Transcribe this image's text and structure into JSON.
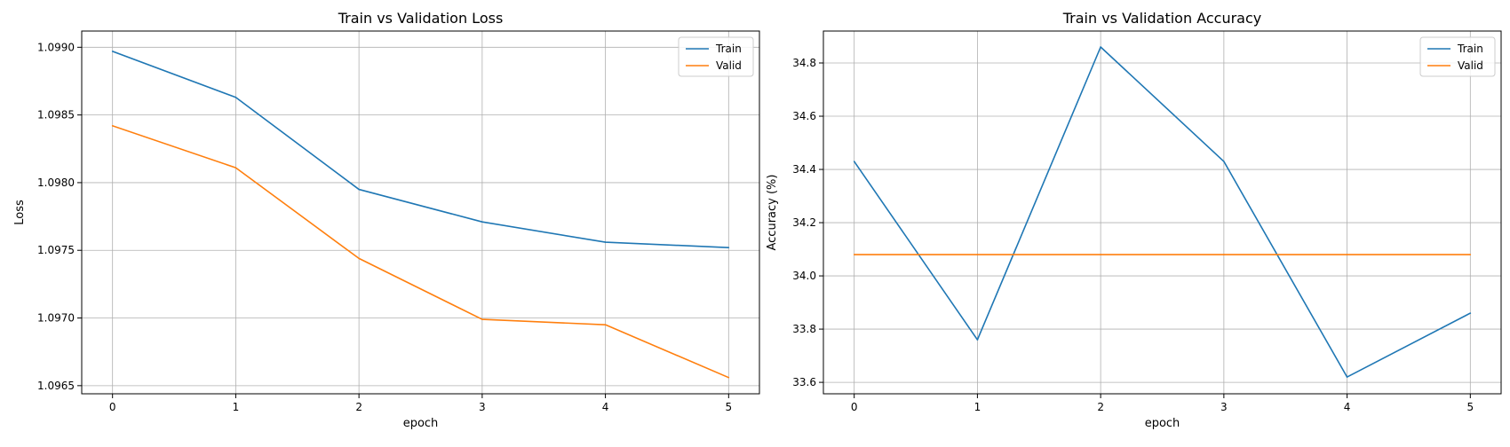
{
  "colors": {
    "train": "#1f77b4",
    "valid": "#ff7f0e",
    "grid": "#b0b0b0",
    "axes": "#000000"
  },
  "chart_data": [
    {
      "type": "line",
      "title": "Train vs Validation Loss",
      "xlabel": "epoch",
      "ylabel": "Loss",
      "x": [
        0,
        1,
        2,
        3,
        4,
        5
      ],
      "xticks": [
        "0",
        "1",
        "2",
        "3",
        "4",
        "5"
      ],
      "xlim": [
        -0.25,
        5.25
      ],
      "yticks": [
        "1.0965",
        "1.0970",
        "1.0975",
        "1.0980",
        "1.0985",
        "1.0990"
      ],
      "ytick_values": [
        1.0965,
        1.097,
        1.0975,
        1.098,
        1.0985,
        1.099
      ],
      "ylim": [
        1.09644,
        1.09912
      ],
      "grid": true,
      "legend": "top-right",
      "series": [
        {
          "name": "Train",
          "values": [
            1.09897,
            1.09863,
            1.09795,
            1.09771,
            1.09756,
            1.09752
          ]
        },
        {
          "name": "Valid",
          "values": [
            1.09842,
            1.09811,
            1.09744,
            1.09699,
            1.09695,
            1.09656
          ]
        }
      ]
    },
    {
      "type": "line",
      "title": "Train vs Validation Accuracy",
      "xlabel": "epoch",
      "ylabel": "Accuracy (%)",
      "x": [
        0,
        1,
        2,
        3,
        4,
        5
      ],
      "xticks": [
        "0",
        "1",
        "2",
        "3",
        "4",
        "5"
      ],
      "xlim": [
        -0.25,
        5.25
      ],
      "yticks": [
        "33.6",
        "33.8",
        "34.0",
        "34.2",
        "34.4",
        "34.6",
        "34.8"
      ],
      "ytick_values": [
        33.6,
        33.8,
        34.0,
        34.2,
        34.4,
        34.6,
        34.8
      ],
      "ylim": [
        33.557,
        34.92
      ],
      "grid": true,
      "legend": "top-right",
      "series": [
        {
          "name": "Train",
          "values": [
            34.43,
            33.76,
            34.86,
            34.43,
            33.62,
            33.86
          ]
        },
        {
          "name": "Valid",
          "values": [
            34.08,
            34.08,
            34.08,
            34.08,
            34.08,
            34.08
          ]
        }
      ]
    }
  ]
}
